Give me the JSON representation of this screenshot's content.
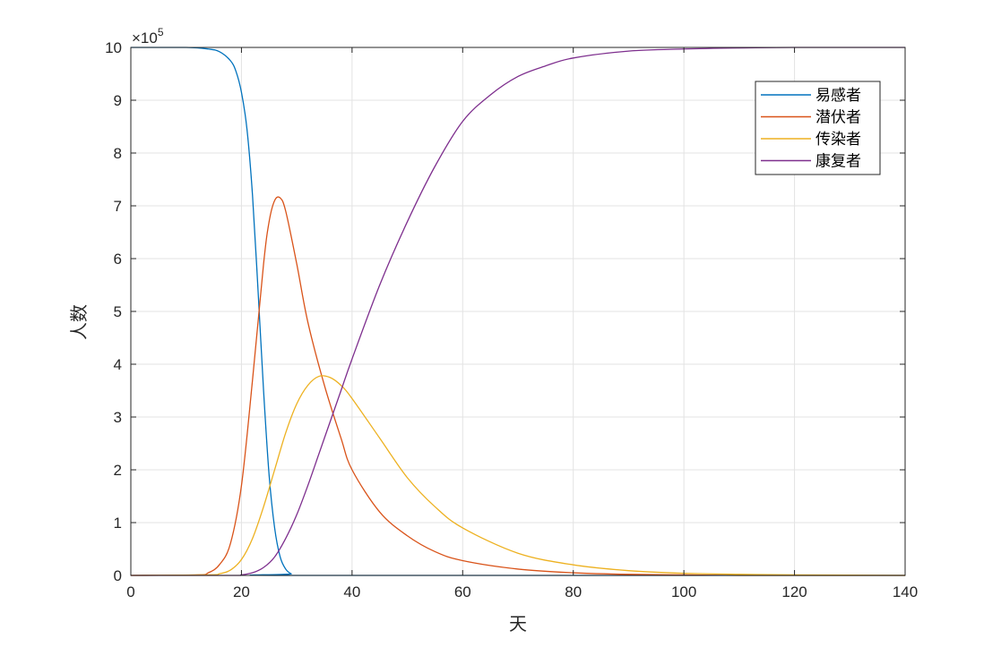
{
  "chart_data": {
    "type": "line",
    "title": "",
    "xlabel": "天",
    "ylabel": "人数",
    "y_multiplier_label": "×10",
    "y_multiplier_exponent": "5",
    "xlim": [
      0,
      140
    ],
    "ylim": [
      0,
      10
    ],
    "xticks": [
      0,
      20,
      40,
      60,
      80,
      100,
      120,
      140
    ],
    "yticks": [
      0,
      1,
      2,
      3,
      4,
      5,
      6,
      7,
      8,
      9,
      10
    ],
    "grid": true,
    "legend_position": "top-right",
    "series": [
      {
        "name": "易感者",
        "color": "#0072BD",
        "x": [
          0,
          10,
          14,
          16,
          18,
          19,
          20,
          21,
          22,
          23,
          24,
          25,
          26,
          27,
          28,
          29,
          30,
          140
        ],
        "y": [
          10,
          10,
          9.97,
          9.92,
          9.75,
          9.55,
          9.15,
          8.45,
          7.2,
          5.4,
          3.5,
          1.9,
          0.9,
          0.35,
          0.12,
          0.03,
          0,
          0
        ]
      },
      {
        "name": "潜伏者",
        "color": "#D95319",
        "x": [
          0,
          12,
          14,
          16,
          18,
          20,
          22,
          24,
          25,
          26,
          27,
          28,
          30,
          32,
          35,
          38,
          40,
          45,
          50,
          55,
          60,
          70,
          80,
          90,
          100,
          110,
          120,
          140
        ],
        "y": [
          0,
          0.01,
          0.05,
          0.2,
          0.6,
          1.7,
          3.7,
          5.9,
          6.7,
          7.1,
          7.15,
          6.9,
          5.9,
          4.8,
          3.6,
          2.6,
          2.0,
          1.2,
          0.75,
          0.45,
          0.28,
          0.12,
          0.05,
          0.02,
          0.01,
          0,
          0,
          0
        ]
      },
      {
        "name": "传染者",
        "color": "#EDB120",
        "x": [
          0,
          14,
          16,
          18,
          20,
          22,
          24,
          26,
          28,
          30,
          32,
          34,
          36,
          38,
          40,
          45,
          50,
          55,
          60,
          70,
          80,
          90,
          100,
          110,
          120,
          140
        ],
        "y": [
          0,
          0.01,
          0.03,
          0.1,
          0.3,
          0.7,
          1.3,
          2.0,
          2.7,
          3.25,
          3.6,
          3.77,
          3.75,
          3.6,
          3.35,
          2.6,
          1.85,
          1.3,
          0.9,
          0.42,
          0.2,
          0.09,
          0.04,
          0.02,
          0.01,
          0
        ]
      },
      {
        "name": "康复者",
        "color": "#7E2F8E",
        "x": [
          0,
          18,
          20,
          22,
          24,
          26,
          28,
          30,
          32,
          34,
          36,
          38,
          40,
          45,
          50,
          55,
          60,
          65,
          70,
          75,
          80,
          90,
          100,
          110,
          120,
          140
        ],
        "y": [
          0,
          0,
          0.01,
          0.05,
          0.15,
          0.35,
          0.7,
          1.15,
          1.7,
          2.3,
          2.9,
          3.5,
          4.1,
          5.5,
          6.7,
          7.75,
          8.6,
          9.1,
          9.45,
          9.65,
          9.8,
          9.93,
          9.97,
          9.99,
          10,
          10
        ]
      }
    ]
  }
}
